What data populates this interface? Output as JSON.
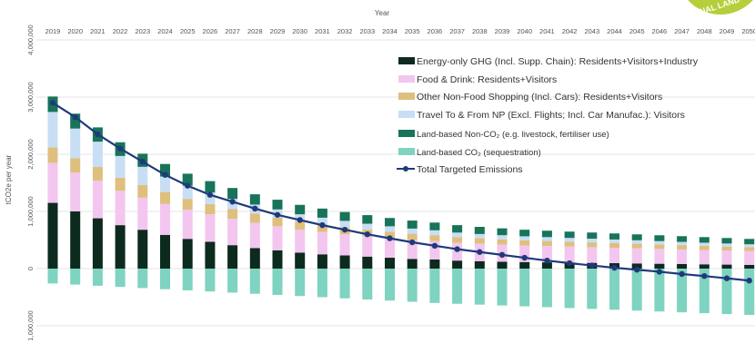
{
  "chart_data": {
    "type": "bar",
    "stacked": true,
    "title": "",
    "xlabel": "Year",
    "ylabel": "tCO2e per year",
    "x_axis_position": "top",
    "ylim": [
      -1100000,
      4000000
    ],
    "y_ticks": [
      {
        "value": 4000000,
        "label": "4,000,000"
      },
      {
        "value": 3000000,
        "label": "3,000,000"
      },
      {
        "value": 2000000,
        "label": "2,000,000"
      },
      {
        "value": 1000000,
        "label": "1,000,000"
      },
      {
        "value": 0,
        "label": "0"
      },
      {
        "value": -1000000,
        "label": "1,000,000"
      }
    ],
    "grid": true,
    "legend_position": "top-right",
    "categories": [
      "2019",
      "2020",
      "2021",
      "2022",
      "2023",
      "2024",
      "2025",
      "2026",
      "2027",
      "2028",
      "2029",
      "2030",
      "2031",
      "2032",
      "2033",
      "2034",
      "2035",
      "2036",
      "2037",
      "2038",
      "2039",
      "2040",
      "2041",
      "2042",
      "2043",
      "2044",
      "2045",
      "2046",
      "2047",
      "2048",
      "2049",
      "2050"
    ],
    "series": [
      {
        "name": "Energy-only GHG (Incl. Supp. Chain): Residents+Visitors+Industry",
        "color": "#0d2a1f",
        "values": [
          1150000,
          1000000,
          880000,
          760000,
          680000,
          590000,
          520000,
          470000,
          410000,
          360000,
          320000,
          280000,
          250000,
          230000,
          210000,
          190000,
          170000,
          160000,
          140000,
          130000,
          120000,
          115000,
          110000,
          105000,
          100000,
          95000,
          90000,
          85000,
          80000,
          75000,
          70000,
          65000
        ]
      },
      {
        "name": "Food & Drink: Residents+Visitors",
        "color": "#f3c6ef",
        "values": [
          700000,
          680000,
          660000,
          600000,
          560000,
          540000,
          510000,
          480000,
          460000,
          440000,
          420000,
          400000,
          390000,
          370000,
          355000,
          340000,
          330000,
          320000,
          310000,
          305000,
          300000,
          290000,
          285000,
          280000,
          275000,
          270000,
          265000,
          260000,
          255000,
          250000,
          245000,
          240000
        ]
      },
      {
        "name": "Other Non-Food Shopping (Incl. Cars): Residents+Visitors",
        "color": "#dfbf7e",
        "values": [
          270000,
          250000,
          240000,
          230000,
          220000,
          210000,
          190000,
          180000,
          170000,
          160000,
          150000,
          140000,
          130000,
          125000,
          120000,
          115000,
          110000,
          105000,
          100000,
          95000,
          92000,
          90000,
          88000,
          86000,
          84000,
          82000,
          80000,
          78000,
          76000,
          74000,
          72000,
          70000
        ]
      },
      {
        "name": "Travel To & From NP (Excl. Flights; Incl. Car Manufac.): Visitors",
        "color": "#c8def4",
        "values": [
          620000,
          520000,
          440000,
          380000,
          320000,
          270000,
          230000,
          200000,
          180000,
          160000,
          145000,
          130000,
          120000,
          110000,
          100000,
          95000,
          90000,
          85000,
          80000,
          75000,
          72000,
          70000,
          68000,
          66000,
          64000,
          62000,
          60000,
          58000,
          56000,
          54000,
          52000,
          50000
        ]
      },
      {
        "name": "Land-based Non-CO2 (e.g. livestock, fertiliser use)",
        "color": "#17745a",
        "values": [
          270000,
          260000,
          250000,
          240000,
          230000,
          220000,
          210000,
          200000,
          190000,
          180000,
          170000,
          165000,
          160000,
          155000,
          150000,
          145000,
          140000,
          135000,
          130000,
          125000,
          120000,
          115000,
          112000,
          110000,
          108000,
          106000,
          104000,
          102000,
          100000,
          98000,
          96000,
          94000
        ]
      },
      {
        "name": "Land-based CO2 (sequestration)",
        "color": "#7fd3c1",
        "values": [
          -260000,
          -280000,
          -300000,
          -320000,
          -340000,
          -360000,
          -380000,
          -400000,
          -420000,
          -440000,
          -460000,
          -480000,
          -500000,
          -520000,
          -540000,
          -560000,
          -580000,
          -600000,
          -615000,
          -630000,
          -645000,
          -660000,
          -675000,
          -690000,
          -705000,
          -720000,
          -735000,
          -750000,
          -765000,
          -780000,
          -795000,
          -810000
        ]
      }
    ],
    "line": {
      "name": "Total Targeted Emissions",
      "color": "#1f3a7a",
      "values": [
        2900000,
        2650000,
        2350000,
        2100000,
        1870000,
        1640000,
        1450000,
        1290000,
        1170000,
        1050000,
        940000,
        850000,
        760000,
        680000,
        600000,
        530000,
        460000,
        400000,
        340000,
        290000,
        240000,
        190000,
        140000,
        95000,
        55000,
        15000,
        -20000,
        -55000,
        -95000,
        -130000,
        -170000,
        -210000
      ]
    },
    "legend_labels": [
      {
        "key": "s0",
        "label": "Energy-only GHG (Incl. Supp. Chain): Residents+Visitors+Industry"
      },
      {
        "key": "s1",
        "label": "Food & Drink: Residents+Visitors"
      },
      {
        "key": "s2",
        "label": "Other Non-Food Shopping (Incl. Cars): Residents+Visitors"
      },
      {
        "key": "s3",
        "label": "Travel To & From NP (Excl. Flights; Incl. Car Manufac.): Visitors"
      },
      {
        "key": "s4",
        "label": "Land-based Non-CO₂ (e.g. livestock, fertiliser use)"
      },
      {
        "key": "s5",
        "label": "Land-based CO₂ (sequestration)"
      },
      {
        "key": "line",
        "label": "Total Targeted Emissions"
      }
    ]
  },
  "logo": {
    "text": "NAL LAND",
    "color": "#b5cf3a"
  }
}
